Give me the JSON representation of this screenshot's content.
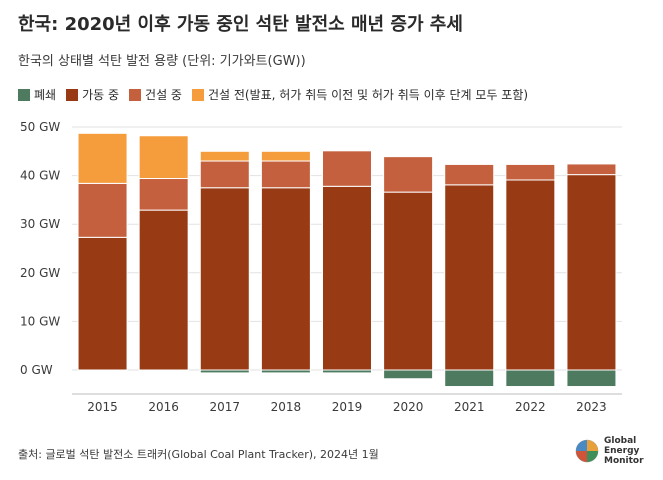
{
  "header": {
    "title": "한국: 2020년 이후 가동 중인 석탄 발전소 매년 증가 추세",
    "subtitle": "한국의 상태별 석탄 발전 용량 (단위: 기가와트(GW))"
  },
  "legend": [
    {
      "label": "폐쇄",
      "color": "#4e7b5f"
    },
    {
      "label": "가동 중",
      "color": "#983a14"
    },
    {
      "label": "건설 중",
      "color": "#c4603d"
    },
    {
      "label": "건설 전(발표, 허가 취득 이전 및 허가 취득 이후 단계 모두 포함)",
      "color": "#f59c3c"
    }
  ],
  "chart_data": {
    "type": "bar",
    "stacked": true,
    "categories": [
      "2015",
      "2016",
      "2017",
      "2018",
      "2019",
      "2020",
      "2021",
      "2022",
      "2023"
    ],
    "series": [
      {
        "name": "폐쇄",
        "color": "#4e7b5f",
        "values": [
          0,
          0,
          -0.6,
          -0.6,
          -0.6,
          -1.8,
          -3.4,
          -3.4,
          -3.4
        ]
      },
      {
        "name": "가동 중",
        "color": "#983a14",
        "values": [
          27.3,
          32.9,
          37.5,
          37.5,
          37.8,
          36.6,
          38.1,
          39.1,
          40.2
        ]
      },
      {
        "name": "건설 중",
        "color": "#c4603d",
        "values": [
          11.1,
          6.5,
          5.5,
          5.5,
          7.3,
          7.3,
          4.2,
          3.2,
          2.2
        ]
      },
      {
        "name": "건설 전(발표, 허가 취득 이전 및 허가 취득 이후 단계 모두 포함)",
        "color": "#f59c3c",
        "values": [
          10.3,
          8.8,
          2.0,
          2.0,
          0,
          0,
          0,
          0,
          0
        ]
      }
    ],
    "y_ticks": [
      0,
      10,
      20,
      30,
      40,
      50
    ],
    "y_tick_labels": [
      "0 GW",
      "10 GW",
      "20 GW",
      "30 GW",
      "40 GW",
      "50 GW"
    ],
    "ylim": [
      -4,
      50
    ],
    "grid": true
  },
  "footer": {
    "source": "출처: 글로벌 석탄 발전소 트래커(Global Coal Plant Tracker), 2024년 1월",
    "logo_lines": [
      "Global",
      "Energy",
      "Monitor"
    ]
  }
}
